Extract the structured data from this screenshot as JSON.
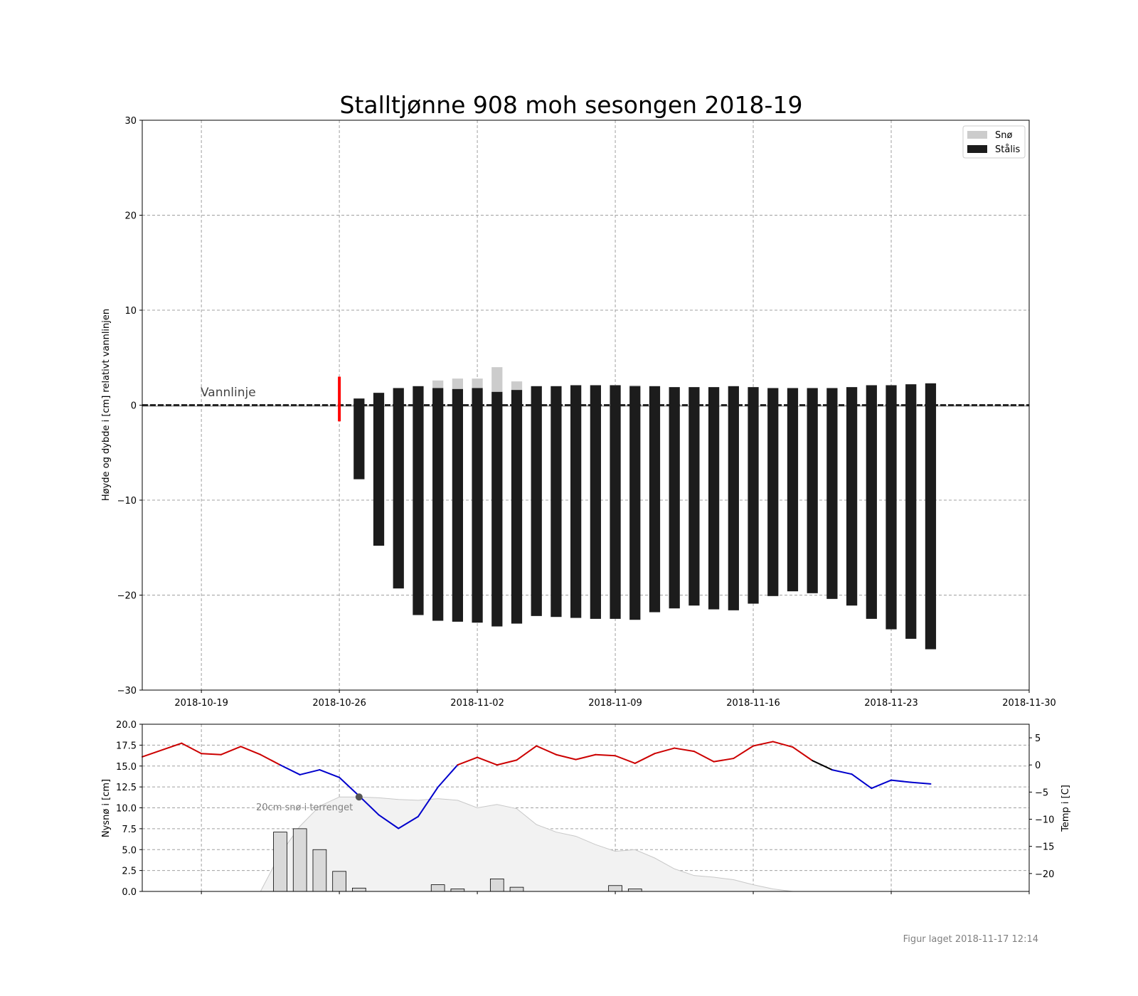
{
  "footer_text": "Figur laget 2018-11-17 12:14",
  "chart_data": [
    {
      "type": "bar",
      "title": "Stalltjønne 908 moh sesongen 2018-19",
      "ylabel": "Høyde og dybde i [cm] relativt vannlinjen",
      "xlabel": "",
      "ylim": [
        -30,
        30
      ],
      "xlim": [
        "2018-10-16",
        "2018-11-30"
      ],
      "yticks": [
        -30,
        -20,
        -10,
        0,
        10,
        20,
        30
      ],
      "xticks": [
        "2018-10-19",
        "2018-10-26",
        "2018-11-02",
        "2018-11-09",
        "2018-11-16",
        "2018-11-23",
        "2018-11-30"
      ],
      "grid": true,
      "legend_position": "top-right",
      "colors": {
        "snow": "#cccccc",
        "ice": "#1c1c1c",
        "first_ice_marker": "#ff0000",
        "waterline": "#000000"
      },
      "waterline_label": "Vannlinje",
      "first_ice_date": "2018-10-26",
      "first_ice_marker_range": [
        -1.7,
        3.0
      ],
      "series": [
        {
          "name": "Snø",
          "dates": [
            "2018-10-31",
            "2018-11-01",
            "2018-11-02",
            "2018-11-03",
            "2018-11-04",
            "2018-11-09",
            "2018-11-10"
          ],
          "bottom": [
            1.8,
            1.7,
            1.8,
            1.4,
            1.6,
            2.0,
            2.0
          ],
          "top": [
            2.6,
            2.8,
            2.8,
            4.0,
            2.5,
            2.1,
            2.1
          ]
        },
        {
          "name": "Stålis",
          "dates": [
            "2018-10-27",
            "2018-10-28",
            "2018-10-29",
            "2018-10-30",
            "2018-10-31",
            "2018-11-01",
            "2018-11-02",
            "2018-11-03",
            "2018-11-04",
            "2018-11-05",
            "2018-11-06",
            "2018-11-07",
            "2018-11-08",
            "2018-11-09",
            "2018-11-10",
            "2018-11-11",
            "2018-11-12",
            "2018-11-13",
            "2018-11-14",
            "2018-11-15",
            "2018-11-16",
            "2018-11-17",
            "2018-11-18",
            "2018-11-19",
            "2018-11-20",
            "2018-11-21",
            "2018-11-22",
            "2018-11-23",
            "2018-11-24",
            "2018-11-25"
          ],
          "top": [
            0.7,
            1.3,
            1.8,
            2.0,
            1.8,
            1.7,
            1.8,
            1.4,
            1.6,
            2.0,
            2.0,
            2.1,
            2.1,
            2.1,
            2.0,
            2.0,
            1.9,
            1.9,
            1.9,
            2.0,
            1.9,
            1.8,
            1.8,
            1.8,
            1.8,
            1.9,
            2.1,
            2.1,
            2.2,
            2.3
          ],
          "bottom": [
            -7.8,
            -14.8,
            -19.3,
            -22.1,
            -22.7,
            -22.8,
            -22.9,
            -23.3,
            -23.0,
            -22.2,
            -22.3,
            -22.4,
            -22.5,
            -22.5,
            -22.6,
            -21.8,
            -21.4,
            -21.1,
            -21.5,
            -21.6,
            -20.9,
            -20.1,
            -19.6,
            -19.8,
            -20.4,
            -21.1,
            -22.5,
            -23.6,
            -24.6,
            -25.7
          ]
        }
      ]
    },
    {
      "type": "bar",
      "ylabel": "Nysnø i [cm]",
      "y2label": "Temp i [C]",
      "ylim": [
        0,
        20
      ],
      "y2lim": [
        -23.3,
        7.5
      ],
      "yticks": [
        0.0,
        2.5,
        5.0,
        7.5,
        10.0,
        12.5,
        15.0,
        17.5,
        20.0
      ],
      "yticklabels": [
        "0.0",
        "2.5",
        "5.0",
        "7.5",
        "10.0",
        "12.5",
        "15.0",
        "17.5",
        "20.0"
      ],
      "y2ticks": [
        5,
        0,
        -5,
        -10,
        -15,
        -20
      ],
      "y2ticklabels": [
        "5",
        "0",
        "−5",
        "−10",
        "−15",
        "−20"
      ],
      "xlim": [
        "2018-10-16",
        "2018-11-30"
      ],
      "grid": true,
      "colors": {
        "new_snow_bar": "#d9d9d9",
        "terrain_snow_area": "#f2f2f2",
        "temp_warm": "#cc0000",
        "temp_cold": "#0000cc",
        "temp_neutral": "#000000",
        "annotation": "#808080"
      },
      "new_snow": {
        "dates": [
          "2018-10-23",
          "2018-10-24",
          "2018-10-25",
          "2018-10-26",
          "2018-10-27",
          "2018-10-31",
          "2018-11-01",
          "2018-11-03",
          "2018-11-04",
          "2018-11-09",
          "2018-11-10"
        ],
        "values": [
          7.1,
          7.5,
          5.0,
          2.4,
          0.4,
          0.8,
          0.3,
          1.5,
          0.5,
          0.7,
          0.3
        ]
      },
      "terrain_snow": {
        "dates": [
          "2018-10-22",
          "2018-10-23",
          "2018-10-24",
          "2018-10-25",
          "2018-10-26",
          "2018-10-27",
          "2018-10-28",
          "2018-10-29",
          "2018-10-30",
          "2018-10-31",
          "2018-11-01",
          "2018-11-02",
          "2018-11-03",
          "2018-11-04",
          "2018-11-05",
          "2018-11-06",
          "2018-11-07",
          "2018-11-08",
          "2018-11-09",
          "2018-11-10",
          "2018-11-11",
          "2018-11-12",
          "2018-11-13",
          "2018-11-14",
          "2018-11-15",
          "2018-11-16",
          "2018-11-17",
          "2018-11-18"
        ],
        "values": [
          0,
          4.5,
          7.8,
          10.2,
          11.3,
          11.3,
          11.2,
          11.0,
          10.9,
          11.1,
          10.9,
          10.0,
          10.4,
          9.9,
          8.0,
          7.1,
          6.6,
          5.6,
          4.8,
          5.0,
          4.0,
          2.7,
          1.9,
          1.7,
          1.4,
          0.8,
          0.3,
          0
        ]
      },
      "temperature": {
        "dates": [
          "2018-10-16",
          "2018-10-18",
          "2018-10-19",
          "2018-10-20",
          "2018-10-21",
          "2018-10-22",
          "2018-10-23",
          "2018-10-24",
          "2018-10-25",
          "2018-10-26",
          "2018-10-27",
          "2018-10-28",
          "2018-10-29",
          "2018-10-30",
          "2018-10-31",
          "2018-11-01",
          "2018-11-02",
          "2018-11-03",
          "2018-11-04",
          "2018-11-05",
          "2018-11-06",
          "2018-11-07",
          "2018-11-08",
          "2018-11-09",
          "2018-11-10",
          "2018-11-11",
          "2018-11-12",
          "2018-11-13",
          "2018-11-14",
          "2018-11-15",
          "2018-11-16",
          "2018-11-17",
          "2018-11-18",
          "2018-11-19",
          "2018-11-20",
          "2018-11-21",
          "2018-11-22",
          "2018-11-23",
          "2018-11-24",
          "2018-11-25"
        ],
        "values": [
          1.5,
          4.0,
          2.1,
          1.9,
          3.4,
          1.9,
          0.0,
          -1.8,
          -0.9,
          -2.3,
          -5.7,
          -9.2,
          -11.7,
          -9.5,
          -4.1,
          0.0,
          1.4,
          0.0,
          0.9,
          3.5,
          1.9,
          1.0,
          1.9,
          1.7,
          0.3,
          2.1,
          3.1,
          2.5,
          0.6,
          1.2,
          3.5,
          4.3,
          3.3,
          0.8,
          -0.9,
          -1.7,
          -4.3,
          -2.8,
          -3.2,
          -3.5
        ]
      },
      "annotation": {
        "text": "20cm snø i terrenget",
        "date": "2018-10-27",
        "value": 11.3
      }
    }
  ]
}
